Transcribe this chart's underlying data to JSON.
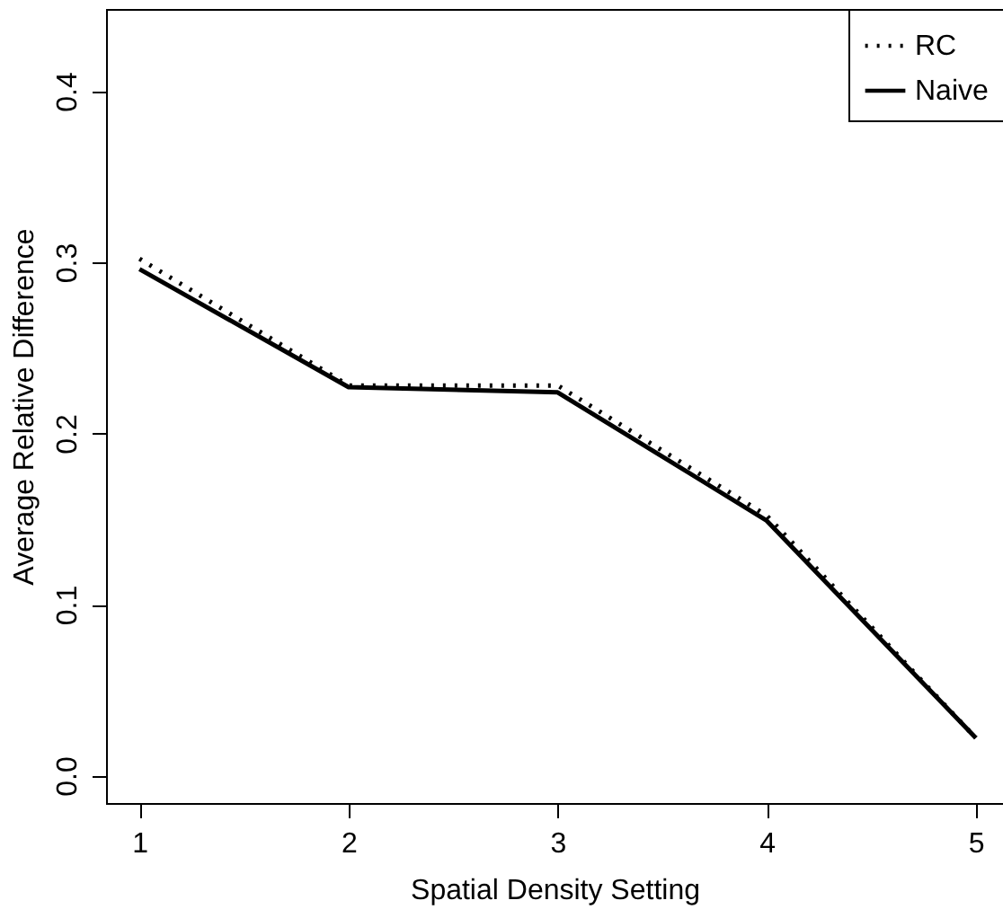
{
  "chart_data": {
    "type": "line",
    "xlabel": "Spatial Density Setting",
    "ylabel": "Average Relative Difference",
    "x": [
      1,
      2,
      3,
      4,
      5
    ],
    "series": [
      {
        "name": "RC",
        "color": "#000000",
        "line_style": "dotted",
        "values": [
          0.302,
          0.228,
          0.228,
          0.152,
          0.022
        ]
      },
      {
        "name": "Naive",
        "color": "#000000",
        "line_style": "solid",
        "values": [
          0.296,
          0.227,
          0.224,
          0.149,
          0.022
        ]
      }
    ],
    "xlim": [
      0.84,
      5.13
    ],
    "ylim": [
      -0.016,
      0.448
    ],
    "xticks": [
      1,
      2,
      3,
      4,
      5
    ],
    "yticks": [
      {
        "value": 0,
        "label": "0.0"
      },
      0.1,
      0.2,
      0.3,
      0.4
    ],
    "grid": false,
    "legend": "top right",
    "marker": "none"
  }
}
